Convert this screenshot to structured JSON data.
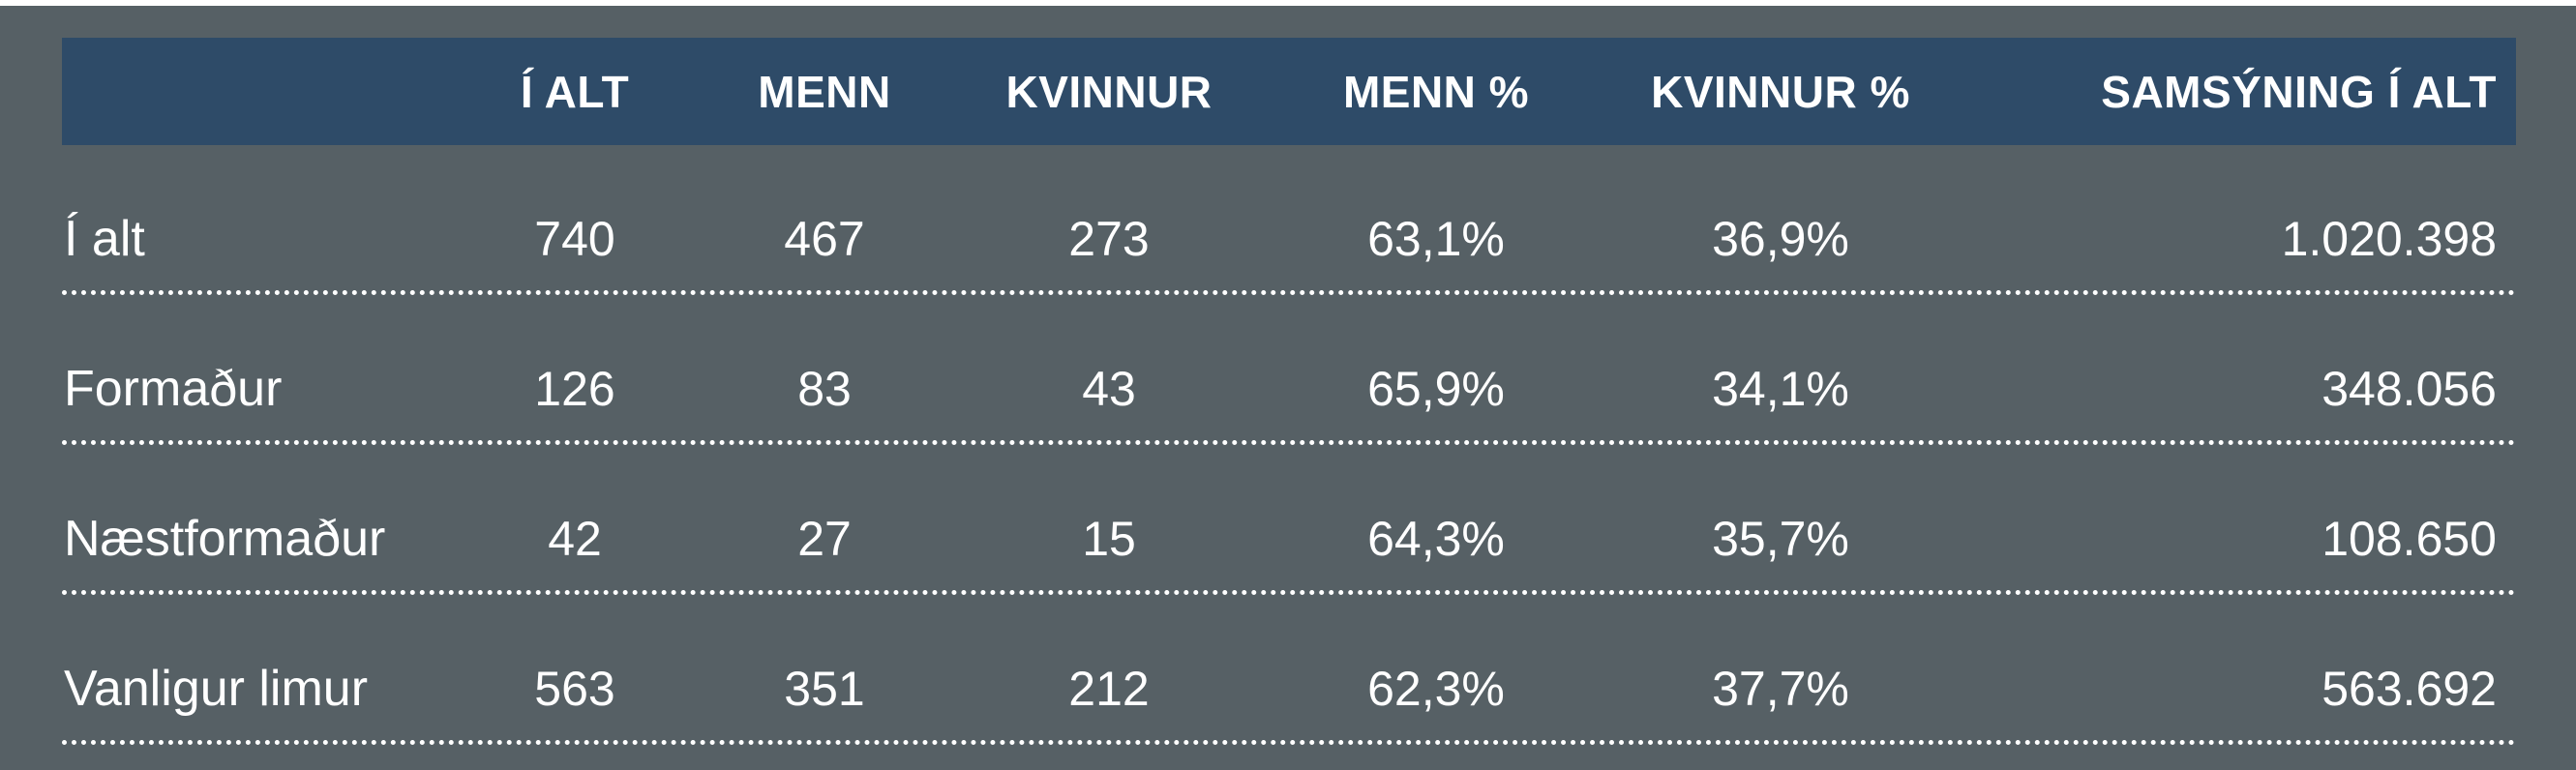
{
  "page": {
    "background_color": "#566065",
    "top_strip_color": "#ffffff",
    "header_bar_color": "#2e4b68",
    "text_color": "#ffffff",
    "divider_style": "white dotted line under each data row"
  },
  "chart_data": {
    "type": "table",
    "title": "",
    "columns": [
      "",
      "Í ALT",
      "MENN",
      "KVINNUR",
      "MENN %",
      "KVINNUR %",
      "SAMSÝNING Í ALT"
    ],
    "rows": [
      [
        "Í alt",
        "740",
        "467",
        "273",
        "63,1%",
        "36,9%",
        "1.020.398"
      ],
      [
        "Formaður",
        "126",
        "83",
        "43",
        "65,9%",
        "34,1%",
        "348.056"
      ],
      [
        "Næstformaður",
        "42",
        "27",
        "15",
        "64,3%",
        "35,7%",
        "108.650"
      ],
      [
        "Vanligur limur",
        "563",
        "351",
        "212",
        "62,3%",
        "37,7%",
        "563.692"
      ]
    ],
    "layout_hints": {
      "first_column_align": "left",
      "numeric_columns_align": "center",
      "last_column_align": "right",
      "header_text_transform": "uppercase bold"
    }
  }
}
